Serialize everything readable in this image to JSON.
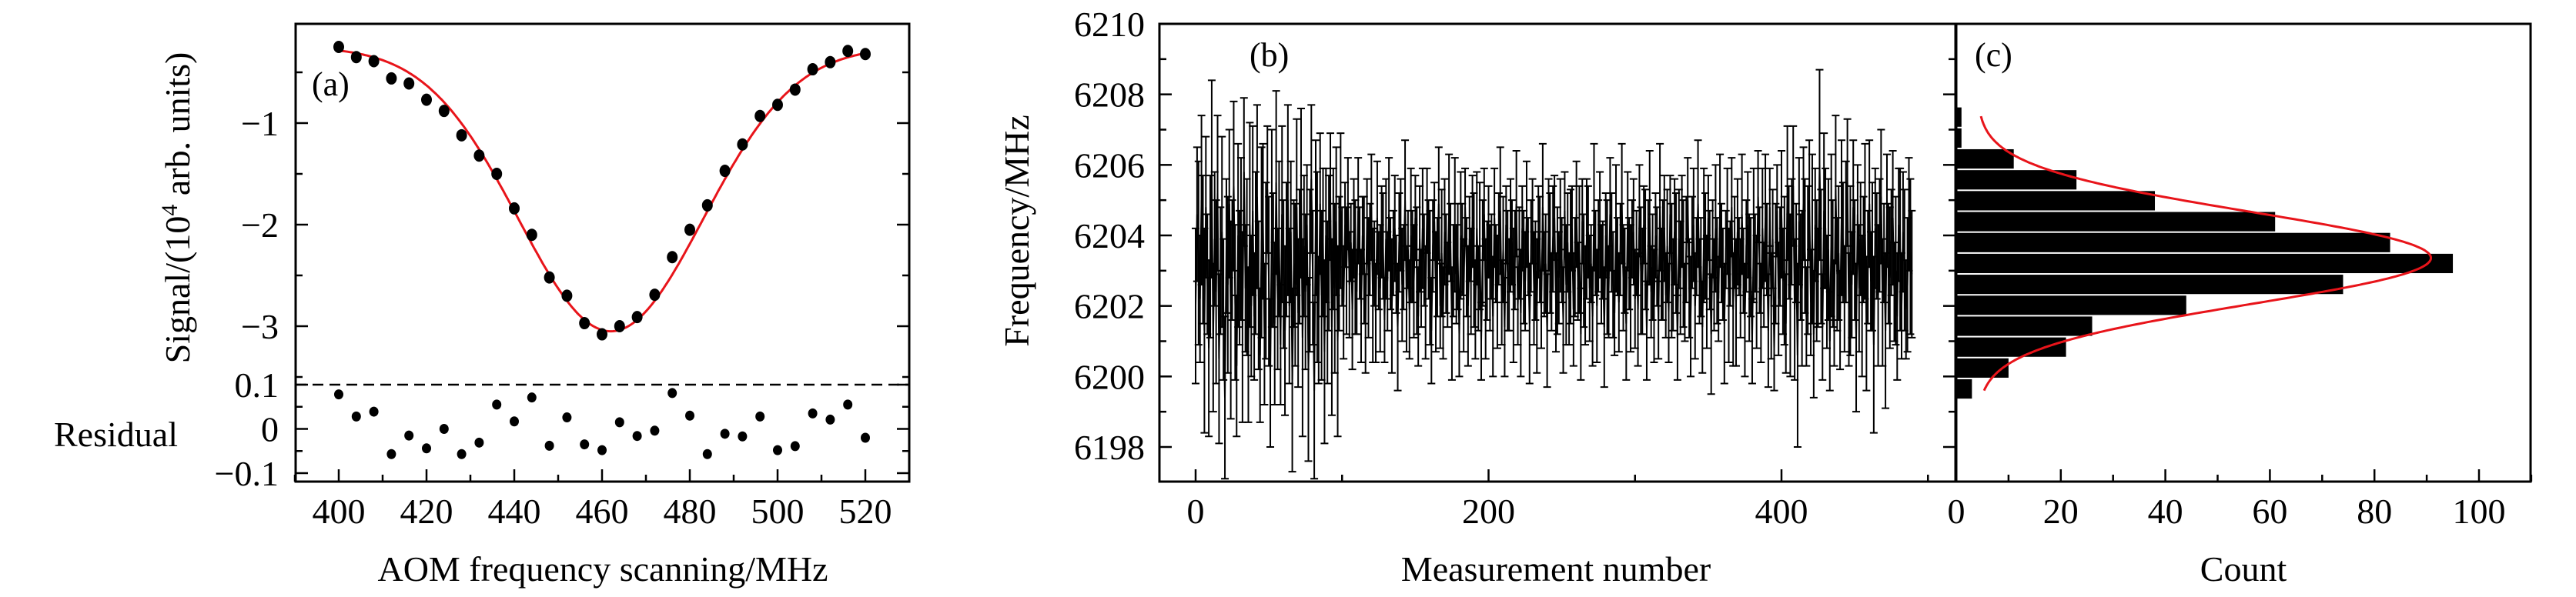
{
  "chart_data": [
    {
      "panel": "(a)",
      "type": "scatter",
      "xlabel": "AOM frequency scanning/MHz",
      "ylabel_prefix": "Signal/(10",
      "ylabel_sup": "4",
      "ylabel_suffix": " arb. units)",
      "residual_label": "Residual",
      "xlim": [
        390,
        530
      ],
      "xticks": [
        "400",
        "420",
        "440",
        "460",
        "480",
        "500",
        "520"
      ],
      "xtick_values": [
        400,
        420,
        440,
        460,
        480,
        500,
        520
      ],
      "signal": {
        "ylim": [
          -3.45,
          0.02
        ],
        "yticks": [
          "−1",
          "−2",
          "−3"
        ],
        "ytick_values": [
          -1,
          -2,
          -3
        ],
        "x": [
          400,
          404,
          408,
          412,
          416,
          420,
          424,
          428,
          432,
          436,
          440,
          444,
          448,
          452,
          456,
          460,
          464,
          468,
          472,
          476,
          480,
          484,
          488,
          492,
          496,
          500,
          504,
          508,
          512,
          516,
          520
        ],
        "y": [
          -0.25,
          -0.35,
          -0.39,
          -0.56,
          -0.61,
          -0.77,
          -0.88,
          -1.12,
          -1.32,
          -1.5,
          -1.84,
          -2.1,
          -2.52,
          -2.7,
          -2.97,
          -3.08,
          -3.0,
          -2.91,
          -2.69,
          -2.32,
          -2.05,
          -1.81,
          -1.47,
          -1.21,
          -0.93,
          -0.82,
          -0.67,
          -0.47,
          -0.4,
          -0.29,
          -0.32
        ],
        "fit": {
          "model": "gaussian",
          "offset": -0.25,
          "amplitude": -2.8,
          "center": 462,
          "sigma": 21,
          "range": [
            400,
            520
          ],
          "color": "#e8141a"
        }
      },
      "residual": {
        "ylim": [
          -0.12,
          0.1
        ],
        "yticks": [
          "0.1",
          "0",
          "−0.1"
        ],
        "ytick_values": [
          0.1,
          0,
          -0.1
        ],
        "y": [
          0.078,
          0.028,
          0.039,
          -0.057,
          -0.015,
          -0.044,
          0.0,
          -0.057,
          -0.031,
          0.055,
          0.017,
          0.071,
          -0.038,
          0.026,
          -0.035,
          -0.048,
          0.015,
          -0.016,
          -0.004,
          0.081,
          0.03,
          -0.057,
          -0.011,
          -0.017,
          0.028,
          -0.048,
          -0.039,
          0.035,
          0.021,
          0.055,
          -0.02
        ]
      }
    },
    {
      "panel": "(b)",
      "type": "line",
      "xlabel": "Measurement number",
      "ylabel": "Frequency/MHz",
      "xlim": [
        -25,
        520
      ],
      "ylim": [
        6197,
        6210
      ],
      "xticks": [
        "0",
        "200",
        "400"
      ],
      "xtick_values": [
        0,
        200,
        400
      ],
      "yticks": [
        "6210",
        "6208",
        "6206",
        "6204",
        "6202",
        "6200",
        "6198"
      ],
      "ytick_values": [
        6210,
        6208,
        6206,
        6204,
        6202,
        6200,
        6198
      ],
      "y": [
        6202.0,
        6204.6,
        6203.5,
        6202.2,
        6205.0,
        6203.6,
        6201.3,
        6204.8,
        6202.9,
        6200.8,
        6203.4,
        6205.6,
        6201.1,
        6203.9,
        6202.4,
        6205.2,
        6200.5,
        6203.0,
        6204.1,
        6201.9,
        6199.4,
        6203.7,
        6202.6,
        6204.9,
        6201.6,
        6203.3,
        6205.4,
        6202.1,
        6200.3,
        6204.0,
        6202.8,
        6203.9,
        6201.4,
        6205.8,
        6202.5,
        6203.1,
        6200.9,
        6204.3,
        6202.0,
        6204.7,
        6201.7,
        6203.5,
        6205.1,
        6202.3,
        6200.6,
        6203.8,
        6204.4,
        6201.2,
        6203.0,
        6205.3,
        6202.7,
        6200.1,
        6204.2,
        6203.3,
        6201.5,
        6205.5,
        6202.2,
        6203.9,
        6200.9,
        6204.6,
        6202.9,
        6201.3,
        6203.6,
        6205.0,
        6202.0,
        6204.1,
        6199.9,
        6203.2,
        6202.6,
        6204.8,
        6201.8,
        6203.4,
        6205.2,
        6201.1,
        6203.7,
        6202.4,
        6204.3,
        6200.2,
        6203.0,
        6205.6,
        6202.8,
        6199.6,
        6204.5,
        6203.1,
        6201.6,
        6204.9,
        6202.3,
        6203.8,
        6200.7,
        6204.0,
        6202.1,
        6203.5,
        6205.1,
        6201.4,
        6203.9,
        6202.5,
        6204.4,
        6201.0,
        6203.2,
        6204.7,
        6203.4,
        6202.1,
        6204.3,
        6203.0,
        6204.9,
        6202.6,
        6203.8,
        6201.9,
        6204.2,
        6203.1,
        6202.4,
        6204.7,
        6203.5,
        6202.0,
        6204.0,
        6203.3,
        6201.5,
        6204.4,
        6202.8,
        6203.6,
        6204.8,
        6202.3,
        6203.2,
        6201.8,
        6204.5,
        6203.0,
        6202.5,
        6204.1,
        6203.7,
        6201.6,
        6203.9,
        6202.7,
        6204.6,
        6203.2,
        6202.0,
        6203.5,
        6204.2,
        6202.9,
        6201.4,
        6203.8,
        6204.3,
        6202.6,
        6203.1,
        6205.0,
        6202.2,
        6203.6,
        6201.9,
        6204.0,
        6203.4,
        6202.7,
        6204.5,
        6203.0,
        6201.7,
        6203.9,
        6202.5,
        6204.2,
        6203.3,
        6202.1,
        6204.7,
        6203.6,
        6202.8,
        6201.3,
        6203.7,
        6204.4,
        6202.4,
        6203.1,
        6204.9,
        6202.0,
        6203.5,
        6201.8,
        6204.1,
        6203.2,
        6202.6,
        6204.6,
        6203.8,
        6201.5,
        6203.0,
        6204.3,
        6202.9,
        6203.4,
        6201.2,
        6204.0,
        6203.6,
        6202.3,
        6204.8,
        6203.1,
        6202.0,
        6203.9,
        6202.7,
        6204.4,
        6203.3,
        6201.9,
        6204.2,
        6202.5,
        6203.7,
        6201.0,
        6203.5,
        6204.6,
        6202.2,
        6203.0,
        6204.1,
        6202.8,
        6203.4,
        6201.7,
        6204.5,
        6203.2,
        6202.4,
        6203.9,
        6204.7,
        6202.1,
        6203.6,
        6201.4,
        6204.3,
        6203.0,
        6202.6,
        6204.0,
        6203.8,
        6202.3,
        6203.3,
        6204.9,
        6202.0,
        6203.5,
        6201.8,
        6204.2,
        6203.1,
        6202.7,
        6204.6,
        6203.4,
        6201.5,
        6203.7,
        6204.4,
        6202.5,
        6203.0,
        6202.0,
        6204.1,
        6203.6,
        6201.9,
        6204.8,
        6202.9,
        6203.2,
        6201.3,
        6204.3,
        6203.5,
        6202.4,
        6203.9,
        6204.5,
        6202.1,
        6203.0,
        6202.8,
        6204.0,
        6203.3,
        6201.6,
        6204.7,
        6202.6,
        6203.8,
        6202.2,
        6203.4,
        6204.2,
        6201.9,
        6203.1,
        6204.6,
        6202.7,
        6203.6,
        6201.2,
        6204.4,
        6203.0,
        6202.3,
        6203.9,
        6204.1,
        6202.5,
        6203.2,
        6201.7,
        6204.8,
        6203.5,
        6202.0,
        6203.7,
        6204.3,
        6202.9,
        6203.3,
        6201.4,
        6204.0,
        6203.1,
        6202.4,
        6204.6,
        6203.8,
        6202.6,
        6201.8,
        6204.2,
        6203.4,
        6202.1,
        6203.6,
        6204.9,
        6202.8,
        6203.0,
        6201.5,
        6204.4,
        6203.2,
        6202.5,
        6203.9,
        6204.1,
        6202.2,
        6203.5,
        6201.9,
        6204.7,
        6203.0,
        6202.7,
        6204.3,
        6203.6,
        6201.3,
        6203.8,
        6204.5,
        6202.4,
        6203.1,
        6202.0,
        6204.0,
        6203.4,
        6201.6,
        6204.8,
        6202.9,
        6203.3,
        6204.2,
        6202.3,
        6203.7,
        6201.8,
        6204.6,
        6203.0,
        6202.6,
        6204.1,
        6203.5,
        6201.1,
        6203.9,
        6202.8,
        6204.4,
        6203.2,
        6202.1,
        6203.6,
        6205.0,
        6202.5,
        6201.7,
        6203.8,
        6204.3,
        6202.0,
        6203.4,
        6204.9,
        6202.7,
        6203.1,
        6201.4,
        6204.0,
        6203.7,
        6202.4,
        6204.5,
        6203.3,
        6201.2,
        6203.9,
        6202.6,
        6204.2,
        6203.0,
        6202.2,
        6204.7,
        6203.5,
        6202.9,
        6201.5,
        6203.6,
        6204.4,
        6202.3,
        6203.2,
        6204.8,
        6201.9,
        6203.8,
        6202.1,
        6204.1,
        6203.4,
        6202.5,
        6204.6,
        6203.0,
        6201.6,
        6203.7,
        6204.3,
        6202.8,
        6203.1,
        6201.0,
        6204.0,
        6203.5,
        6202.4,
        6205.1,
        6203.3,
        6201.8,
        6204.2,
        6202.6,
        6204.5,
        6203.6,
        6201.3,
        6204.8,
        6202.0,
        6203.9,
        6200.8,
        6203.2,
        6204.7,
        6202.2,
        6203.4,
        6204.6,
        6202.7,
        6203.0,
        6201.5,
        6205.2,
        6203.8,
        6202.3,
        6204.1,
        6205.4,
        6201.9,
        6203.5,
        6200.6,
        6204.4,
        6203.1,
        6202.5,
        6204.9,
        6203.7,
        6201.7,
        6203.3,
        6205.0,
        6202.1,
        6203.9,
        6201.2,
        6204.3,
        6203.0,
        6202.8,
        6206.0,
        6203.4,
        6201.4,
        6204.7,
        6204.2,
        6202.4,
        6203.6,
        6201.0,
        6204.0,
        6203.2,
        6201.8,
        6205.3,
        6202.9,
        6203.5,
        6201.6,
        6204.5,
        6203.8,
        6202.2,
        6204.1,
        6205.5,
        6201.9,
        6203.0,
        6202.6,
        6204.8,
        6203.3,
        6201.1,
        6204.6,
        6202.5,
        6203.9,
        6202.0,
        6203.6,
        6204.4,
        6201.5,
        6203.1,
        6204.9,
        6202.7,
        6203.4,
        6200.9,
        6204.2,
        6203.7,
        6202.3,
        6204.0,
        6205.1,
        6202.1,
        6203.5,
        6201.3,
        6204.7,
        6203.2,
        6202.8,
        6203.8,
        6204.5,
        6202.4,
        6203.0,
        6201.7,
        6204.3,
        6203.6,
        6202.0,
        6204.1,
        6203.3,
        6201.9,
        6202.6,
        6204.6,
        6203.4,
        6202.9
      ],
      "yerr": [
        2.2,
        1.9,
        2.6,
        1.8,
        2.4,
        2.1,
        2.9,
        2.0,
        1.7,
        2.5,
        2.3,
        2.8,
        2.1,
        1.9,
        2.6,
        2.2,
        2.4,
        1.8,
        2.7,
        2.0,
        2.3,
        1.9,
        2.5,
        2.1,
        2.8,
        1.7,
        2.4,
        2.2,
        2.0,
        2.6,
        1.9,
        2.3,
        2.7,
        2.1,
        1.8,
        2.5,
        2.2,
        2.9,
        2.0,
        2.4,
        1.8,
        2.3,
        2.6,
        2.1,
        1.9,
        2.7,
        2.2,
        2.0,
        2.5,
        1.8,
        2.4,
        2.1,
        2.8,
        1.9,
        2.3,
        2.6,
        2.0,
        2.2,
        1.7,
        2.5,
        2.1,
        2.4,
        1.9,
        2.7,
        2.2,
        2.0,
        2.6,
        1.8,
        2.3,
        2.5,
        2.1,
        1.9,
        2.4,
        2.8,
        2.0,
        2.2,
        1.7,
        2.6,
        2.3,
        2.1,
        1.9,
        2.5,
        2.2,
        2.7,
        1.8,
        2.0,
        2.4,
        2.1,
        2.6,
        1.9,
        2.3,
        2.2,
        1.8,
        2.5,
        2.0,
        2.4,
        2.1,
        2.7,
        1.9,
        2.2,
        1.4,
        1.6,
        1.2,
        1.8,
        1.3,
        1.5,
        1.1,
        1.7,
        1.4,
        1.9,
        1.2,
        1.5,
        1.3,
        1.6,
        1.1,
        1.8,
        1.4,
        1.2,
        1.7,
        1.3,
        1.5,
        1.9,
        1.2,
        1.4,
        1.6,
        1.1,
        1.8,
        1.3,
        1.5,
        1.2,
        1.7,
        1.4,
        1.6,
        1.3,
        1.9,
        1.2,
        1.5,
        1.1,
        1.8,
        1.4,
        1.3,
        1.6,
        1.2,
        1.7,
        1.5,
        1.1,
        1.4,
        1.9,
        1.3,
        1.6,
        1.2,
        1.8,
        1.4,
        1.5,
        1.1,
        1.7,
        1.3,
        1.6,
        1.2,
        1.4,
        1.9,
        1.5,
        1.3,
        1.1,
        1.7,
        1.4,
        1.6,
        1.2,
        1.8,
        1.3,
        1.5,
        1.4,
        1.2,
        1.7,
        1.1,
        1.6,
        1.3,
        1.9,
        1.4,
        1.5,
        1.2,
        1.8,
        1.3,
        1.6,
        1.1,
        1.4,
        1.7,
        1.2,
        1.5,
        1.3,
        1.9,
        1.4,
        1.6,
        1.2,
        1.8,
        1.1,
        1.5,
        1.3,
        1.7,
        1.4,
        1.3,
        1.5,
        1.2,
        1.7,
        1.4,
        1.1,
        1.6,
        1.3,
        1.8,
        1.2,
        1.5,
        1.4,
        1.1,
        1.7,
        1.3,
        1.6,
        1.2,
        1.9,
        1.4,
        1.5,
        1.1,
        1.3,
        1.8,
        1.2,
        1.6,
        1.4,
        1.5,
        1.1,
        1.7,
        1.3,
        1.2,
        1.6,
        1.4,
        1.9,
        1.3,
        1.5,
        1.1,
        1.8,
        1.2,
        1.4,
        1.6,
        1.3,
        1.7,
        1.1,
        1.5,
        1.2,
        1.4,
        1.8,
        1.3,
        1.6,
        1.2,
        1.5,
        1.1,
        1.7,
        1.4,
        1.3,
        1.9,
        1.2,
        1.6,
        1.4,
        1.5,
        1.1,
        1.8,
        1.3,
        1.2,
        1.6,
        1.4,
        1.7,
        1.3,
        1.5,
        1.1,
        1.4,
        1.8,
        1.2,
        1.6,
        1.3,
        1.5,
        1.4,
        1.1,
        1.7,
        1.2,
        1.9,
        1.3,
        1.6,
        1.4,
        1.5,
        1.2,
        1.8,
        1.1,
        1.4,
        1.3,
        1.7,
        1.5,
        1.2,
        1.6,
        1.4,
        1.3,
        1.8,
        1.1,
        1.5,
        1.4,
        1.2,
        1.6,
        1.3,
        1.8,
        1.5,
        1.1,
        1.7,
        1.4,
        1.2,
        1.9,
        1.3,
        1.5,
        1.6,
        1.2,
        1.4,
        1.1,
        1.8,
        1.3,
        1.7,
        1.5,
        1.2,
        1.6,
        1.4,
        1.1,
        1.9,
        1.3,
        1.5,
        1.7,
        1.2,
        1.4,
        1.6,
        1.3,
        1.8,
        1.1,
        1.5,
        1.2,
        1.4,
        1.7,
        1.3,
        1.6,
        1.5,
        1.1,
        1.8,
        1.2,
        1.4,
        1.3,
        1.9,
        1.5,
        1.6,
        1.2,
        1.4,
        1.7,
        1.1,
        1.3,
        1.8,
        1.5,
        1.2,
        1.6,
        1.4,
        1.3,
        1.7,
        1.1,
        1.5,
        1.9,
        1.2,
        1.4,
        1.6,
        1.3,
        1.8,
        1.5,
        1.1,
        1.4,
        1.7,
        1.2,
        1.6,
        1.3,
        1.5,
        1.8,
        1.4,
        1.2,
        1.9,
        1.1,
        1.6,
        1.3,
        1.5,
        1.4,
        1.7,
        1.2,
        1.8,
        1.3,
        1.6,
        1.1,
        1.5,
        1.4,
        1.2,
        1.7,
        1.3,
        1.6,
        1.4,
        1.8,
        1.5,
        2.1,
        1.4,
        1.9,
        1.6,
        2.3,
        1.5,
        1.7,
        2.0,
        1.4,
        2.6,
        1.8,
        1.5,
        2.2,
        1.6,
        1.9,
        1.4,
        2.1,
        1.7,
        1.5,
        2.4,
        1.8,
        1.6,
        2.0,
        1.4,
        2.7,
        1.9,
        1.5,
        2.2,
        1.7,
        1.6,
        2.0,
        1.4,
        2.3,
        1.8,
        1.5,
        2.1,
        1.6,
        1.9,
        1.4,
        2.2,
        1.7,
        1.5,
        2.0,
        1.8,
        1.6,
        2.4,
        1.5,
        1.9,
        1.7,
        2.1,
        1.4,
        1.8,
        1.6,
        2.0,
        1.5,
        2.2,
        1.9,
        1.6,
        1.8,
        1.4,
        2.1,
        2.5,
        1.7,
        1.5,
        2.0,
        1.6,
        1.9,
        1.8,
        1.4,
        2.2,
        1.6,
        1.7,
        2.0,
        1.5,
        1.9,
        1.4,
        2.1,
        1.8,
        1.6,
        2.3,
        1.5,
        1.7,
        2.0,
        1.4,
        1.9,
        1.6,
        2.2,
        1.8
      ]
    },
    {
      "panel": "(c)",
      "type": "bar",
      "orientation": "horizontal",
      "xlabel": "Count",
      "xlim": [
        0,
        110
      ],
      "ylim": [
        6197,
        6210
      ],
      "xticks": [
        "0",
        "20",
        "40",
        "60",
        "80",
        "100"
      ],
      "xtick_values": [
        0,
        20,
        40,
        60,
        80,
        100
      ],
      "bin_start": 6199.35,
      "bin_width": 0.593,
      "counts": [
        3,
        10,
        21,
        26,
        44,
        74,
        95,
        83,
        61,
        38,
        23,
        11,
        1,
        1
      ],
      "fit": {
        "model": "gaussian",
        "offset": 4,
        "amplitude": 86.8,
        "center": 6203.36,
        "sigma": 1.3,
        "range": [
          6199.6,
          6207.4
        ],
        "color": "#e8141a"
      }
    }
  ]
}
